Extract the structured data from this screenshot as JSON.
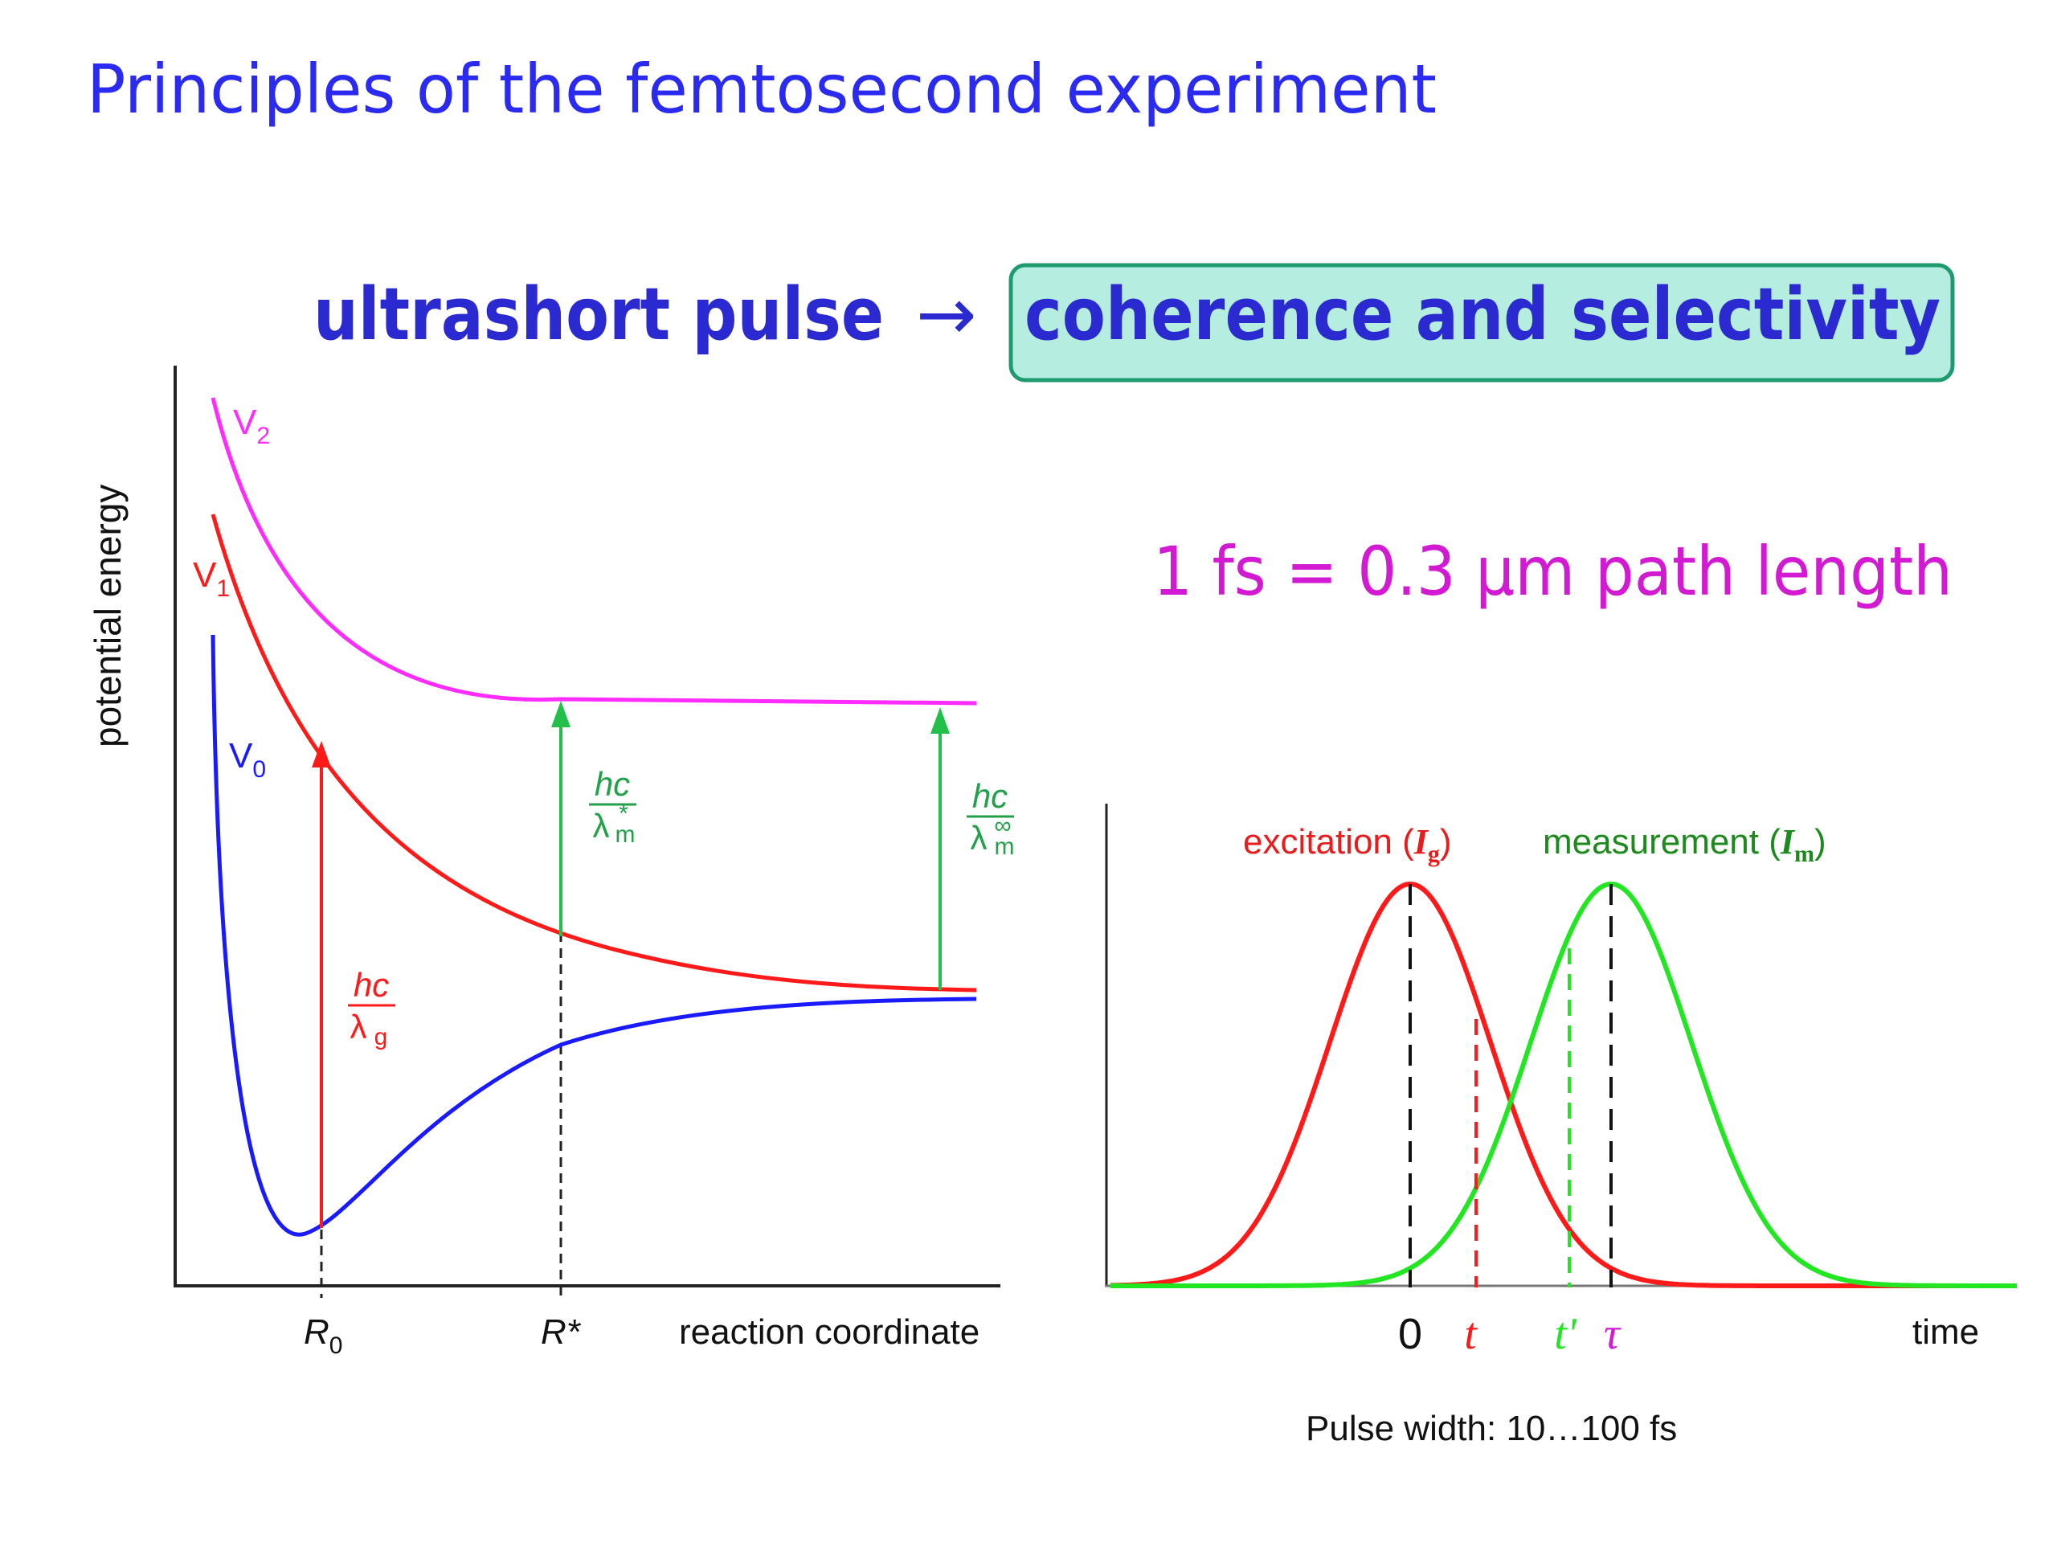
{
  "slide": {
    "title": "Principles of the femtosecond experiment",
    "headline": {
      "left": "ultrashort pulse",
      "arrow": "→",
      "boxed": "coherence and selectivity"
    },
    "path_note": "1 fs = 0.3 μm path length"
  },
  "energy_diagram": {
    "ylabel": "potential energy",
    "xlabel": "reaction coordinate",
    "r0": {
      "letter": "R",
      "sub": "0"
    },
    "rstar": "R*",
    "curves": [
      {
        "name": "V",
        "sub": "2",
        "color": "#ff2bff"
      },
      {
        "name": "V",
        "sub": "1",
        "color": "#ff1a1a"
      },
      {
        "name": "V",
        "sub": "0",
        "color": "#1a1aff"
      }
    ],
    "transitions": [
      {
        "num": "hc",
        "den": "λ",
        "sup": "",
        "sub": "g",
        "color": "#ff1a1a"
      },
      {
        "num": "hc",
        "den": "λ",
        "sup": "*",
        "sub": "m",
        "color": "#22a04a"
      },
      {
        "num": "hc",
        "den": "λ",
        "sup": "∞",
        "sub": "m",
        "color": "#22a04a"
      }
    ]
  },
  "pulse_diagram": {
    "excitation": {
      "label": "excitation (",
      "sym": "I",
      "sub": "g",
      "close": ")",
      "color": "#e81c1c"
    },
    "measurement": {
      "label": "measurement (",
      "sym": "I",
      "sub": "m",
      "close": ")",
      "color": "#1d8a1d"
    },
    "time_marks": [
      "0",
      "t",
      "t'",
      "τ"
    ],
    "xlabel": "time",
    "caption": "Pulse width: 10…100 fs",
    "excitation_color": "#ff1a1a",
    "measurement_color": "#22e622"
  }
}
